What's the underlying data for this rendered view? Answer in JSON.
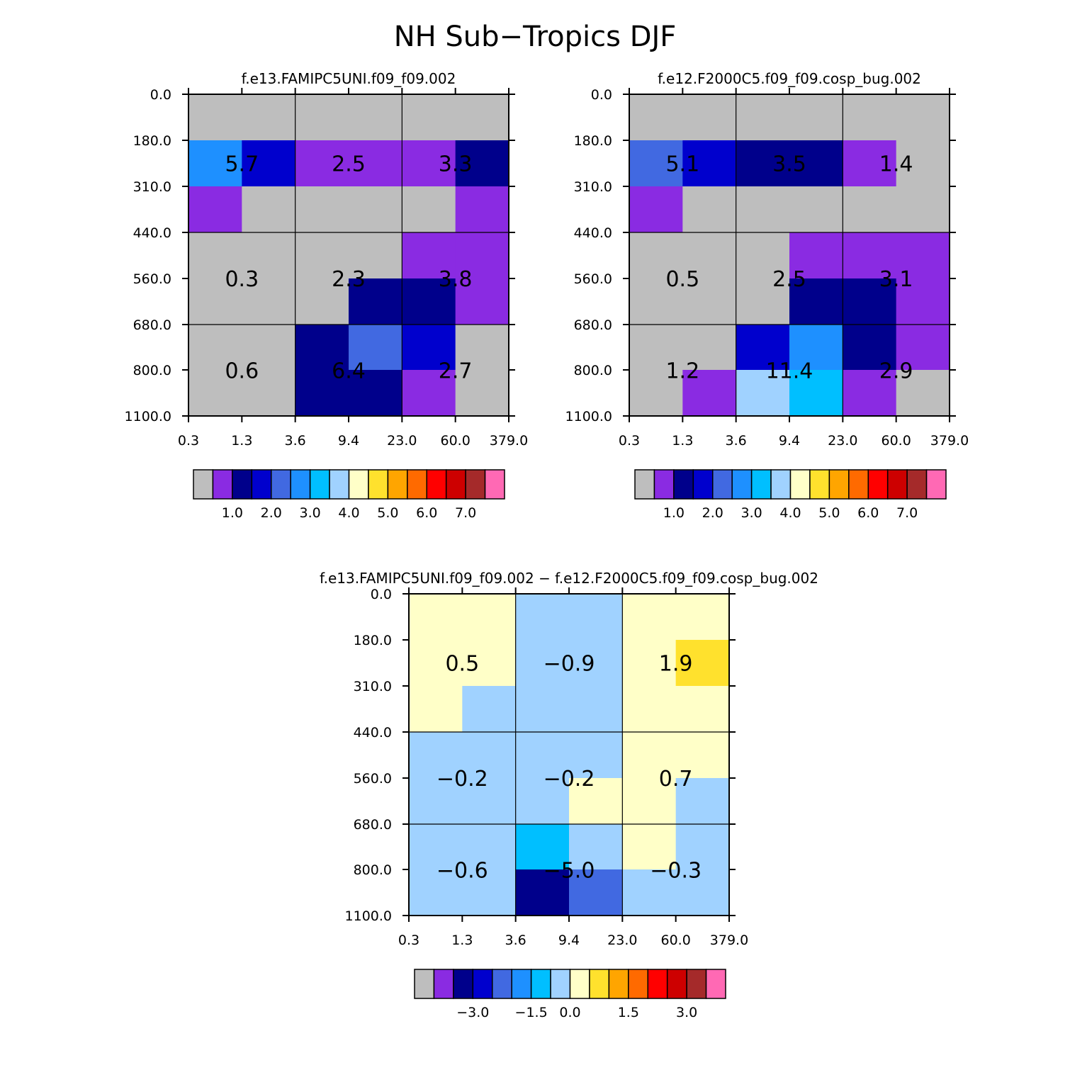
{
  "title": "NH Sub−Tropics DJF",
  "colors": {
    "palette": [
      "#bebebe",
      "#8a2be2",
      "#00008b",
      "#0000cd",
      "#4169e1",
      "#1e90ff",
      "#00bfff",
      "#a0d2ff",
      "#ffffc8",
      "#ffe12d",
      "#ffa500",
      "#ff6a00",
      "#ff0000",
      "#cd0000",
      "#a52a2a",
      "#ff69b4"
    ]
  },
  "chart_data": [
    {
      "type": "heatmap",
      "title": "f.e13.FAMIPC5UNI.f09_f09.002",
      "x_tick_labels": [
        "0.3",
        "1.3",
        "3.6",
        "9.4",
        "23.0",
        "60.0",
        "379.0"
      ],
      "y_tick_labels": [
        "0.0",
        "180.0",
        "310.0",
        "440.0",
        "560.0",
        "680.0",
        "800.0",
        "1100.0"
      ],
      "x_axis_meaning": "optical depth bin edges",
      "y_axis_meaning": "cloud top pressure bin edges (top to bottom)",
      "cell_color_index": [
        [
          0,
          0,
          0,
          0,
          0,
          0
        ],
        [
          5,
          3,
          1,
          1,
          1,
          2
        ],
        [
          1,
          0,
          0,
          0,
          0,
          1
        ],
        [
          0,
          0,
          0,
          0,
          1,
          1
        ],
        [
          0,
          0,
          0,
          2,
          2,
          1
        ],
        [
          0,
          0,
          2,
          4,
          3,
          0
        ],
        [
          0,
          0,
          2,
          2,
          1,
          0
        ]
      ],
      "group_values": [
        [
          "5.7",
          "2.5",
          "3.3"
        ],
        [
          "0.3",
          "2.3",
          "3.8"
        ],
        [
          "0.6",
          "6.4",
          "2.7"
        ]
      ],
      "colorbar_labels": [
        "1.0",
        "2.0",
        "3.0",
        "4.0",
        "5.0",
        "6.0",
        "7.0"
      ]
    },
    {
      "type": "heatmap",
      "title": "f.e12.F2000C5.f09_f09.cosp_bug.002",
      "x_tick_labels": [
        "0.3",
        "1.3",
        "3.6",
        "9.4",
        "23.0",
        "60.0",
        "379.0"
      ],
      "y_tick_labels": [
        "0.0",
        "180.0",
        "310.0",
        "440.0",
        "560.0",
        "680.0",
        "800.0",
        "1100.0"
      ],
      "x_axis_meaning": "optical depth bin edges",
      "y_axis_meaning": "cloud top pressure bin edges (top to bottom)",
      "cell_color_index": [
        [
          0,
          0,
          0,
          0,
          0,
          0
        ],
        [
          4,
          3,
          2,
          2,
          1,
          0
        ],
        [
          1,
          0,
          0,
          0,
          0,
          0
        ],
        [
          0,
          0,
          0,
          1,
          1,
          1
        ],
        [
          0,
          0,
          0,
          2,
          2,
          1
        ],
        [
          0,
          0,
          3,
          5,
          2,
          1
        ],
        [
          0,
          1,
          7,
          6,
          1,
          0
        ]
      ],
      "group_values": [
        [
          "5.1",
          "3.5",
          "1.4"
        ],
        [
          "0.5",
          "2.5",
          "3.1"
        ],
        [
          "1.2",
          "11.4",
          "2.9"
        ]
      ],
      "colorbar_labels": [
        "1.0",
        "2.0",
        "3.0",
        "4.0",
        "5.0",
        "6.0",
        "7.0"
      ]
    },
    {
      "type": "heatmap",
      "title": "f.e13.FAMIPC5UNI.f09_f09.002 − f.e12.F2000C5.f09_f09.cosp_bug.002",
      "x_tick_labels": [
        "0.3",
        "1.3",
        "3.6",
        "9.4",
        "23.0",
        "60.0",
        "379.0"
      ],
      "y_tick_labels": [
        "0.0",
        "180.0",
        "310.0",
        "440.0",
        "560.0",
        "680.0",
        "800.0",
        "1100.0"
      ],
      "x_axis_meaning": "optical depth bin edges",
      "y_axis_meaning": "cloud top pressure bin edges (top to bottom)",
      "cell_color_index": [
        [
          8,
          8,
          7,
          7,
          8,
          8
        ],
        [
          8,
          8,
          7,
          7,
          8,
          9
        ],
        [
          8,
          7,
          7,
          7,
          8,
          8
        ],
        [
          7,
          7,
          7,
          7,
          8,
          8
        ],
        [
          7,
          7,
          7,
          8,
          8,
          7
        ],
        [
          7,
          7,
          6,
          7,
          8,
          7
        ],
        [
          7,
          7,
          2,
          4,
          7,
          7
        ]
      ],
      "group_values": [
        [
          "0.5",
          "−0.9",
          "1.9"
        ],
        [
          "−0.2",
          "−0.2",
          "0.7"
        ],
        [
          "−0.6",
          "−5.0",
          "−0.3"
        ]
      ],
      "colorbar_labels": [
        "−3.0",
        "−1.5",
        "0.0",
        "1.5",
        "3.0"
      ]
    }
  ]
}
